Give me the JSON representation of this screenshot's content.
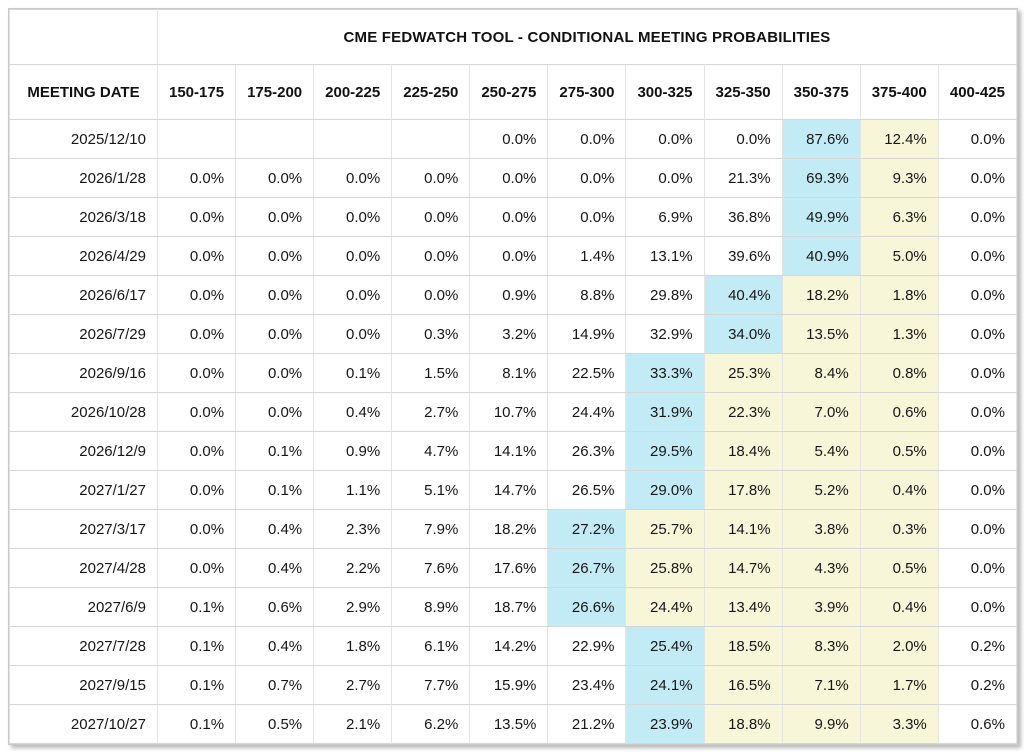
{
  "title": "CME FEDWATCH TOOL - CONDITIONAL MEETING PROBABILITIES",
  "columns": [
    "MEETING DATE",
    "150-175",
    "175-200",
    "200-225",
    "225-250",
    "250-275",
    "275-300",
    "300-325",
    "325-350",
    "350-375",
    "375-400",
    "400-425"
  ],
  "colors": {
    "mode_highlight_blue": "#c2ebf6",
    "right_tail_highlight_yellow": "#f8f6d8"
  },
  "rows": [
    {
      "date": "2025/12/10",
      "values": [
        "",
        "",
        "",
        "",
        "0.0%",
        "0.0%",
        "0.0%",
        "0.0%",
        "87.6%",
        "12.4%",
        "0.0%"
      ],
      "highlights": [
        "none",
        "none",
        "none",
        "none",
        "none",
        "none",
        "none",
        "none",
        "blue",
        "yellow",
        "none"
      ]
    },
    {
      "date": "2026/1/28",
      "values": [
        "0.0%",
        "0.0%",
        "0.0%",
        "0.0%",
        "0.0%",
        "0.0%",
        "0.0%",
        "21.3%",
        "69.3%",
        "9.3%",
        "0.0%"
      ],
      "highlights": [
        "none",
        "none",
        "none",
        "none",
        "none",
        "none",
        "none",
        "none",
        "blue",
        "yellow",
        "none"
      ]
    },
    {
      "date": "2026/3/18",
      "values": [
        "0.0%",
        "0.0%",
        "0.0%",
        "0.0%",
        "0.0%",
        "0.0%",
        "6.9%",
        "36.8%",
        "49.9%",
        "6.3%",
        "0.0%"
      ],
      "highlights": [
        "none",
        "none",
        "none",
        "none",
        "none",
        "none",
        "none",
        "none",
        "blue",
        "yellow",
        "none"
      ]
    },
    {
      "date": "2026/4/29",
      "values": [
        "0.0%",
        "0.0%",
        "0.0%",
        "0.0%",
        "0.0%",
        "1.4%",
        "13.1%",
        "39.6%",
        "40.9%",
        "5.0%",
        "0.0%"
      ],
      "highlights": [
        "none",
        "none",
        "none",
        "none",
        "none",
        "none",
        "none",
        "none",
        "blue",
        "yellow",
        "none"
      ]
    },
    {
      "date": "2026/6/17",
      "values": [
        "0.0%",
        "0.0%",
        "0.0%",
        "0.0%",
        "0.9%",
        "8.8%",
        "29.8%",
        "40.4%",
        "18.2%",
        "1.8%",
        "0.0%"
      ],
      "highlights": [
        "none",
        "none",
        "none",
        "none",
        "none",
        "none",
        "none",
        "blue",
        "yellow",
        "yellow",
        "none"
      ]
    },
    {
      "date": "2026/7/29",
      "values": [
        "0.0%",
        "0.0%",
        "0.0%",
        "0.3%",
        "3.2%",
        "14.9%",
        "32.9%",
        "34.0%",
        "13.5%",
        "1.3%",
        "0.0%"
      ],
      "highlights": [
        "none",
        "none",
        "none",
        "none",
        "none",
        "none",
        "none",
        "blue",
        "yellow",
        "yellow",
        "none"
      ]
    },
    {
      "date": "2026/9/16",
      "values": [
        "0.0%",
        "0.0%",
        "0.1%",
        "1.5%",
        "8.1%",
        "22.5%",
        "33.3%",
        "25.3%",
        "8.4%",
        "0.8%",
        "0.0%"
      ],
      "highlights": [
        "none",
        "none",
        "none",
        "none",
        "none",
        "none",
        "blue",
        "yellow",
        "yellow",
        "yellow",
        "none"
      ]
    },
    {
      "date": "2026/10/28",
      "values": [
        "0.0%",
        "0.0%",
        "0.4%",
        "2.7%",
        "10.7%",
        "24.4%",
        "31.9%",
        "22.3%",
        "7.0%",
        "0.6%",
        "0.0%"
      ],
      "highlights": [
        "none",
        "none",
        "none",
        "none",
        "none",
        "none",
        "blue",
        "yellow",
        "yellow",
        "yellow",
        "none"
      ]
    },
    {
      "date": "2026/12/9",
      "values": [
        "0.0%",
        "0.1%",
        "0.9%",
        "4.7%",
        "14.1%",
        "26.3%",
        "29.5%",
        "18.4%",
        "5.4%",
        "0.5%",
        "0.0%"
      ],
      "highlights": [
        "none",
        "none",
        "none",
        "none",
        "none",
        "none",
        "blue",
        "yellow",
        "yellow",
        "yellow",
        "none"
      ]
    },
    {
      "date": "2027/1/27",
      "values": [
        "0.0%",
        "0.1%",
        "1.1%",
        "5.1%",
        "14.7%",
        "26.5%",
        "29.0%",
        "17.8%",
        "5.2%",
        "0.4%",
        "0.0%"
      ],
      "highlights": [
        "none",
        "none",
        "none",
        "none",
        "none",
        "none",
        "blue",
        "yellow",
        "yellow",
        "yellow",
        "none"
      ]
    },
    {
      "date": "2027/3/17",
      "values": [
        "0.0%",
        "0.4%",
        "2.3%",
        "7.9%",
        "18.2%",
        "27.2%",
        "25.7%",
        "14.1%",
        "3.8%",
        "0.3%",
        "0.0%"
      ],
      "highlights": [
        "none",
        "none",
        "none",
        "none",
        "none",
        "blue",
        "yellow",
        "yellow",
        "yellow",
        "yellow",
        "none"
      ]
    },
    {
      "date": "2027/4/28",
      "values": [
        "0.0%",
        "0.4%",
        "2.2%",
        "7.6%",
        "17.6%",
        "26.7%",
        "25.8%",
        "14.7%",
        "4.3%",
        "0.5%",
        "0.0%"
      ],
      "highlights": [
        "none",
        "none",
        "none",
        "none",
        "none",
        "blue",
        "yellow",
        "yellow",
        "yellow",
        "yellow",
        "none"
      ]
    },
    {
      "date": "2027/6/9",
      "values": [
        "0.1%",
        "0.6%",
        "2.9%",
        "8.9%",
        "18.7%",
        "26.6%",
        "24.4%",
        "13.4%",
        "3.9%",
        "0.4%",
        "0.0%"
      ],
      "highlights": [
        "none",
        "none",
        "none",
        "none",
        "none",
        "blue",
        "yellow",
        "yellow",
        "yellow",
        "yellow",
        "none"
      ]
    },
    {
      "date": "2027/7/28",
      "values": [
        "0.1%",
        "0.4%",
        "1.8%",
        "6.1%",
        "14.2%",
        "22.9%",
        "25.4%",
        "18.5%",
        "8.3%",
        "2.0%",
        "0.2%"
      ],
      "highlights": [
        "none",
        "none",
        "none",
        "none",
        "none",
        "none",
        "blue",
        "yellow",
        "yellow",
        "yellow",
        "none"
      ]
    },
    {
      "date": "2027/9/15",
      "values": [
        "0.1%",
        "0.7%",
        "2.7%",
        "7.7%",
        "15.9%",
        "23.4%",
        "24.1%",
        "16.5%",
        "7.1%",
        "1.7%",
        "0.2%"
      ],
      "highlights": [
        "none",
        "none",
        "none",
        "none",
        "none",
        "none",
        "blue",
        "yellow",
        "yellow",
        "yellow",
        "none"
      ]
    },
    {
      "date": "2027/10/27",
      "values": [
        "0.1%",
        "0.5%",
        "2.1%",
        "6.2%",
        "13.5%",
        "21.2%",
        "23.9%",
        "18.8%",
        "9.9%",
        "3.3%",
        "0.6%"
      ],
      "highlights": [
        "none",
        "none",
        "none",
        "none",
        "none",
        "none",
        "blue",
        "yellow",
        "yellow",
        "yellow",
        "none"
      ]
    }
  ]
}
